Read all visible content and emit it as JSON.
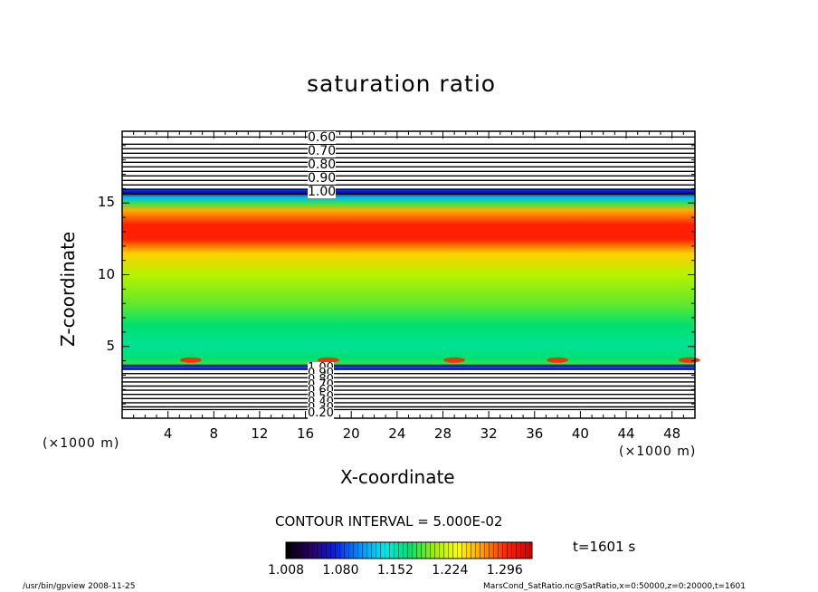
{
  "chart_data": {
    "type": "heatmap",
    "title": "saturation ratio",
    "xlabel": "X-coordinate",
    "ylabel": "Z-coordinate",
    "x_unit": "(×1000 m)",
    "x_unit_right": "(×1000 m)",
    "xlim": [
      0,
      50
    ],
    "ylim": [
      0,
      20
    ],
    "x_ticks": [
      4,
      8,
      12,
      16,
      20,
      24,
      28,
      32,
      36,
      40,
      44,
      48
    ],
    "y_ticks": [
      5,
      10,
      15
    ],
    "contour_interval_label": "CONTOUR INTERVAL = 5.000E-02",
    "time_label": "t=1601 s",
    "upper_contour_labels": [
      "0.60",
      "0.70",
      "0.80",
      "0.90",
      "1.00"
    ],
    "lower_contour_labels": [
      "1.00",
      "0.90",
      "0.80",
      "0.70",
      "0.60",
      "0.50",
      "0.40",
      "0.30",
      "0.20"
    ],
    "colorbar_ticks": [
      "1.008",
      "1.080",
      "1.152",
      "1.224",
      "1.296"
    ],
    "colorbar_range": [
      1.008,
      1.332
    ],
    "colormap": [
      "#000000",
      "#2a0060",
      "#0a20e0",
      "#0090ff",
      "#00e8e8",
      "#00e070",
      "#a0ee00",
      "#ffff00",
      "#ff9800",
      "#ff2000",
      "#d00000"
    ],
    "vertical_profile": [
      {
        "z": 3.55,
        "value": 1.0
      },
      {
        "z": 3.65,
        "value": 1.04
      },
      {
        "z": 3.8,
        "value": 1.18
      },
      {
        "z": 4.2,
        "value": 1.17
      },
      {
        "z": 5.0,
        "value": 1.16
      },
      {
        "z": 6.5,
        "value": 1.17
      },
      {
        "z": 8.0,
        "value": 1.19
      },
      {
        "z": 10.0,
        "value": 1.21
      },
      {
        "z": 11.5,
        "value": 1.25
      },
      {
        "z": 12.5,
        "value": 1.3
      },
      {
        "z": 13.5,
        "value": 1.3
      },
      {
        "z": 14.5,
        "value": 1.26
      },
      {
        "z": 15.0,
        "value": 1.18
      },
      {
        "z": 15.4,
        "value": 1.12
      },
      {
        "z": 15.7,
        "value": 1.06
      },
      {
        "z": 16.0,
        "value": 1.01
      }
    ]
  },
  "footer": {
    "left": "/usr/bin/gpview   2008-11-25",
    "right": "MarsCond_SatRatio.nc@SatRatio,x=0:50000,z=0:20000,t=1601"
  }
}
